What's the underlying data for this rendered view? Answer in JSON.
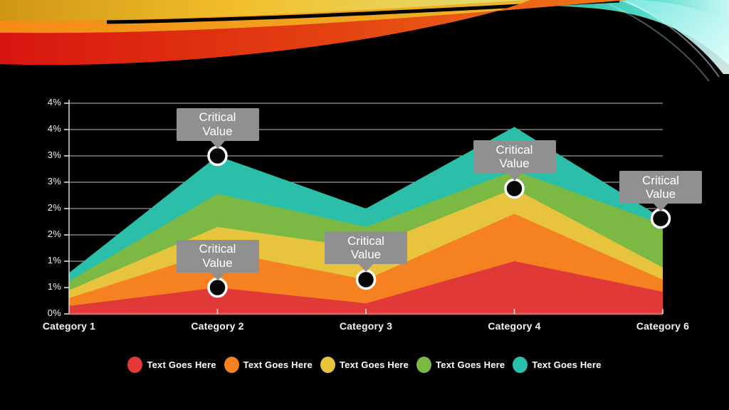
{
  "slide": {
    "background_color": "#000000",
    "decoration": {
      "description": "abstract-color-wave-banner",
      "warm_colors": [
        "#d81510",
        "#f58a15",
        "#f2bf2a",
        "#e6d96a"
      ],
      "cool_colors": [
        "#0c3f28",
        "#1e9c7a",
        "#4fd8c8",
        "#c8f7f3"
      ]
    }
  },
  "chart_data": {
    "type": "area",
    "stacked": true,
    "title": "",
    "xlabel": "",
    "ylabel": "",
    "grid": true,
    "legend_position": "bottom",
    "categories": [
      "Category 1",
      "Category 2",
      "Category 3",
      "Category 4",
      "Category 6"
    ],
    "y_axis": {
      "min": 0,
      "max": 4.0,
      "step": 0.5,
      "tick_labels_top_to_bottom": [
        "4%",
        "4%",
        "3%",
        "3%",
        "2%",
        "2%",
        "1%",
        "1%",
        "0%"
      ]
    },
    "series": [
      {
        "name": "Text Goes Here",
        "color": "#e03937",
        "values": [
          0.15,
          0.5,
          0.2,
          1.0,
          0.42
        ]
      },
      {
        "name": "Text Goes Here",
        "color": "#f68120",
        "values": [
          0.15,
          0.7,
          0.45,
          0.9,
          0.23
        ]
      },
      {
        "name": "Text Goes Here",
        "color": "#e8c33e",
        "values": [
          0.15,
          0.45,
          0.6,
          0.48,
          0.23
        ]
      },
      {
        "name": "Text Goes Here",
        "color": "#7bb944",
        "values": [
          0.17,
          0.63,
          0.4,
          0.34,
          0.82
        ]
      },
      {
        "name": "Text Goes Here",
        "color": "#2bbfa9",
        "values": [
          0.16,
          0.72,
          0.35,
          0.83,
          0.11
        ]
      }
    ],
    "annotations": [
      {
        "label": "Critical Value",
        "category_index": 1,
        "series_index": 4,
        "cumulative_value_pct": 3.0
      },
      {
        "label": "Critical Value",
        "category_index": 1,
        "series_index": 0,
        "cumulative_value_pct": 0.5
      },
      {
        "label": "Critical Value",
        "category_index": 2,
        "series_index": 1,
        "cumulative_value_pct": 0.65
      },
      {
        "label": "Critical Value",
        "category_index": 3,
        "series_index": 2,
        "cumulative_value_pct": 2.38
      },
      {
        "label": "Critical Value",
        "category_index": 4,
        "series_index": 4,
        "cumulative_value_pct": 1.81
      }
    ],
    "marker_style": {
      "fill": "#060606",
      "stroke": "#ffffff"
    },
    "gridline_color": "#d6d6d6",
    "x_axis_line_color": "#e2635b",
    "callout_color": "#909090"
  }
}
